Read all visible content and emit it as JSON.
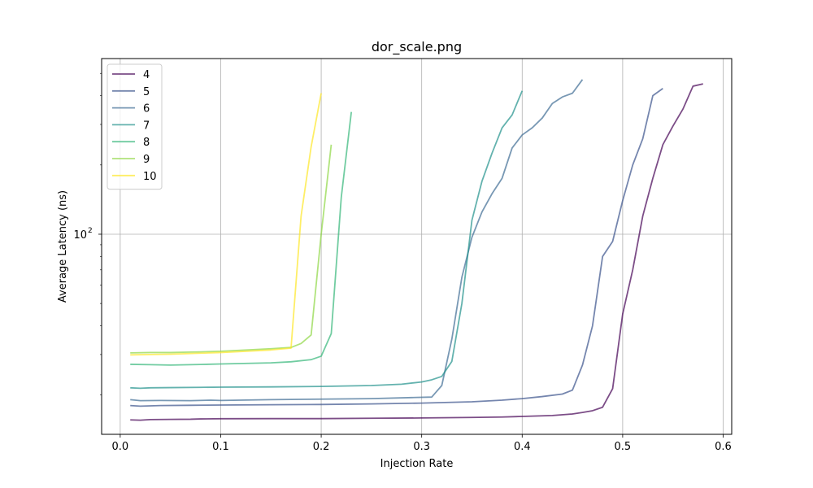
{
  "chart_data": {
    "type": "line",
    "title": "dor_scale.png",
    "xlabel": "Injection Rate",
    "ylabel": "Average Latency (ns)",
    "xlim": [
      -0.0185,
      0.6085
    ],
    "ylim": [
      13.5,
      580
    ],
    "yscale": "log",
    "grid": true,
    "legend_position": "top-left",
    "xticks": [
      {
        "value": 0.0,
        "label": "0.0"
      },
      {
        "value": 0.1,
        "label": "0.1"
      },
      {
        "value": 0.2,
        "label": "0.2"
      },
      {
        "value": 0.3,
        "label": "0.3"
      },
      {
        "value": 0.4,
        "label": "0.4"
      },
      {
        "value": 0.5,
        "label": "0.5"
      },
      {
        "value": 0.6,
        "label": "0.6"
      }
    ],
    "yticks": [
      {
        "value": 100,
        "label": "10",
        "exp": "2"
      }
    ],
    "series": [
      {
        "name": "4",
        "color": "#440154",
        "x": [
          0.01,
          0.02,
          0.03,
          0.05,
          0.07,
          0.08,
          0.1,
          0.15,
          0.2,
          0.25,
          0.3,
          0.35,
          0.38,
          0.4,
          0.43,
          0.45,
          0.46,
          0.47,
          0.48,
          0.49,
          0.5,
          0.51,
          0.52,
          0.53,
          0.54,
          0.55,
          0.56,
          0.57,
          0.58
        ],
        "y": [
          15.6,
          15.55,
          15.65,
          15.68,
          15.7,
          15.75,
          15.78,
          15.8,
          15.8,
          15.85,
          15.9,
          15.98,
          16.05,
          16.15,
          16.3,
          16.55,
          16.8,
          17.1,
          17.7,
          21.3,
          45,
          70,
          120,
          175,
          245,
          295,
          350,
          440,
          450
        ]
      },
      {
        "name": "5",
        "color": "#3b528b",
        "x": [
          0.01,
          0.02,
          0.04,
          0.07,
          0.1,
          0.15,
          0.2,
          0.25,
          0.3,
          0.35,
          0.38,
          0.4,
          0.42,
          0.44,
          0.45,
          0.46,
          0.47,
          0.48,
          0.49,
          0.5,
          0.51,
          0.52,
          0.53,
          0.54
        ],
        "y": [
          18.0,
          17.9,
          18.0,
          18.05,
          18.1,
          18.15,
          18.2,
          18.3,
          18.45,
          18.7,
          19.0,
          19.3,
          19.7,
          20.2,
          21.0,
          27,
          40,
          80,
          93,
          140,
          200,
          260,
          400,
          430
        ]
      },
      {
        "name": "6",
        "color": "#3e6c94",
        "x": [
          0.01,
          0.02,
          0.04,
          0.07,
          0.09,
          0.1,
          0.15,
          0.2,
          0.25,
          0.29,
          0.31,
          0.32,
          0.33,
          0.34,
          0.35,
          0.36,
          0.37,
          0.38,
          0.39,
          0.4,
          0.41,
          0.42,
          0.43,
          0.44,
          0.45,
          0.46
        ],
        "y": [
          19.1,
          18.9,
          18.95,
          18.9,
          19.0,
          18.95,
          19.1,
          19.2,
          19.3,
          19.5,
          19.6,
          22,
          35,
          65,
          97,
          125,
          150,
          175,
          237,
          270,
          290,
          320,
          370,
          395,
          410,
          470
        ]
      },
      {
        "name": "7",
        "color": "#21918c",
        "x": [
          0.01,
          0.02,
          0.03,
          0.05,
          0.08,
          0.1,
          0.15,
          0.2,
          0.25,
          0.28,
          0.3,
          0.31,
          0.32,
          0.33,
          0.34,
          0.35,
          0.36,
          0.37,
          0.38,
          0.39,
          0.4
        ],
        "y": [
          21.5,
          21.4,
          21.5,
          21.55,
          21.6,
          21.65,
          21.7,
          21.8,
          22.0,
          22.3,
          22.8,
          23.3,
          24.1,
          28,
          50,
          115,
          170,
          225,
          290,
          330,
          420
        ]
      },
      {
        "name": "8",
        "color": "#35b779",
        "x": [
          0.01,
          0.03,
          0.05,
          0.08,
          0.1,
          0.15,
          0.17,
          0.19,
          0.2,
          0.21,
          0.22,
          0.23
        ],
        "y": [
          27.2,
          27.1,
          27.0,
          27.15,
          27.3,
          27.6,
          27.9,
          28.5,
          29.5,
          37,
          145,
          340
        ]
      },
      {
        "name": "9",
        "color": "#8fd744",
        "x": [
          0.01,
          0.03,
          0.05,
          0.08,
          0.1,
          0.12,
          0.15,
          0.17,
          0.18,
          0.19,
          0.2,
          0.21
        ],
        "y": [
          30.5,
          30.6,
          30.6,
          30.8,
          31.0,
          31.3,
          31.8,
          32.2,
          33.5,
          36.5,
          100,
          245
        ]
      },
      {
        "name": "10",
        "color": "#fde725",
        "x": [
          0.01,
          0.03,
          0.05,
          0.08,
          0.1,
          0.12,
          0.15,
          0.17,
          0.18,
          0.19,
          0.2
        ],
        "y": [
          29.9,
          30.0,
          30.1,
          30.4,
          30.6,
          30.9,
          31.4,
          32.0,
          120,
          240,
          410
        ]
      }
    ]
  }
}
